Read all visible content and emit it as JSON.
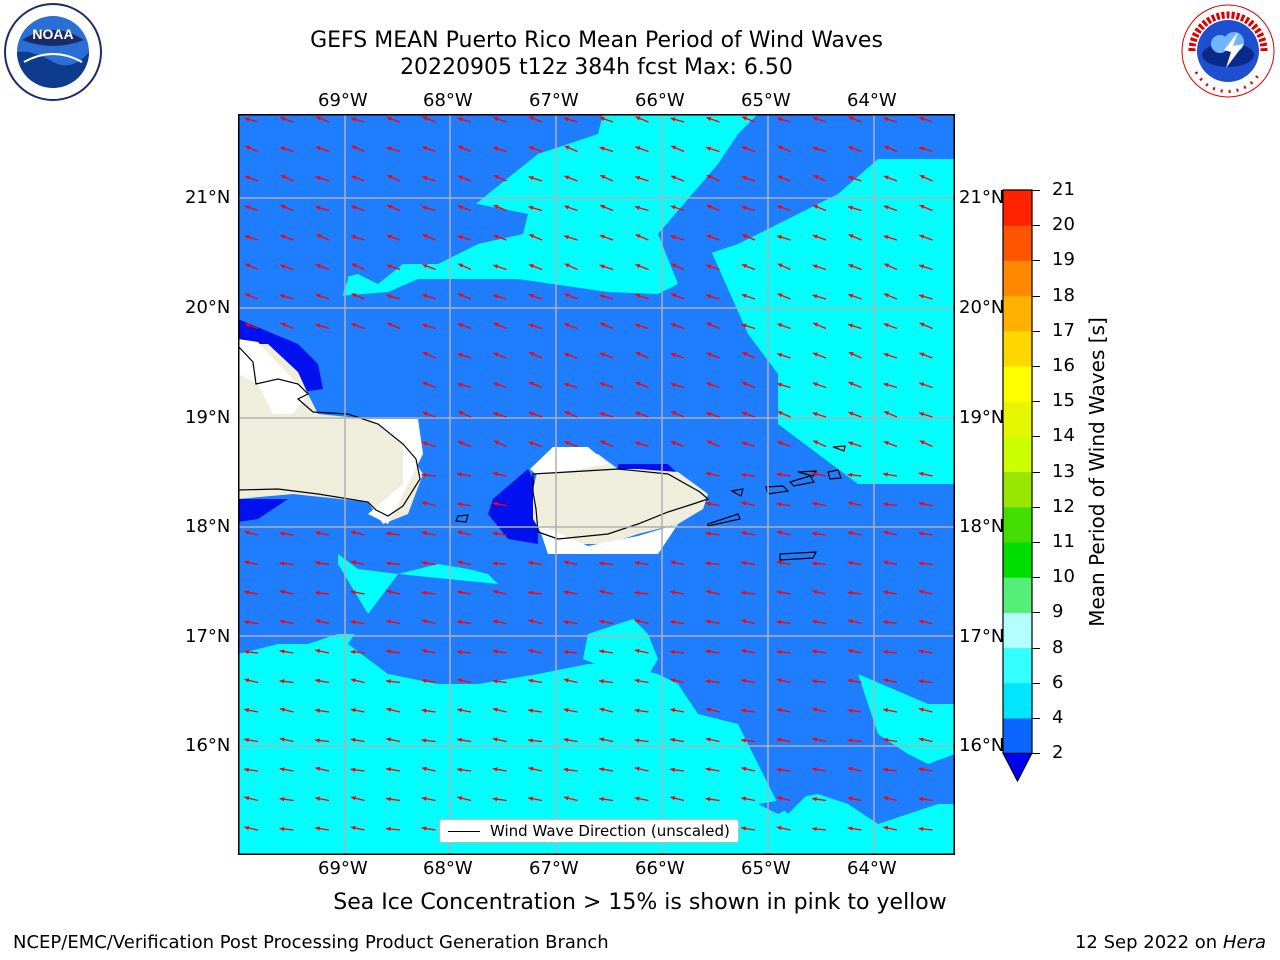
{
  "title": {
    "line1": "GEFS MEAN Puerto Rico Mean Period of Wind Waves",
    "line2": "20220905 t12z 384h fcst   Max: 6.50"
  },
  "map": {
    "lon_labels": [
      "69°W",
      "68°W",
      "67°W",
      "66°W",
      "65°W",
      "64°W"
    ],
    "lat_labels": [
      "21°N",
      "20°N",
      "19°N",
      "18°N",
      "17°N",
      "16°N"
    ],
    "extent": {
      "lon": [
        -70.0,
        -63.25
      ],
      "lat": [
        15.05,
        21.75
      ]
    },
    "gridlines": true
  },
  "legend": {
    "label": "Wind Wave Direction (unscaled)"
  },
  "colorbar": {
    "label": "Mean Period of Wind Waves [s]",
    "ticks": [
      "2",
      "4",
      "6",
      "8",
      "9",
      "10",
      "11",
      "12",
      "13",
      "14",
      "15",
      "16",
      "17",
      "18",
      "19",
      "20",
      "21"
    ],
    "colors": [
      "#0a66ff",
      "#00e6ff",
      "#33ffff",
      "#b3ffff",
      "#55ee77",
      "#00dd00",
      "#44dd00",
      "#99e600",
      "#ccff00",
      "#e6f500",
      "#ffff00",
      "#ffd700",
      "#ffb000",
      "#ff8800",
      "#ff5500",
      "#ff2200"
    ],
    "under_color": "#0000ee"
  },
  "colors": {
    "ocean_low": "#1f7dff",
    "ocean_high": "#00ffff",
    "ocean_very_low": "#0010ee",
    "land": "#efeddc",
    "arrow": "#ff0000"
  },
  "note": "Sea Ice Concentration > 15% is shown in pink to yellow",
  "footer": {
    "left": "NCEP/EMC/Verification Post Processing Product Generation Branch",
    "date": "12 Sep 2022 on",
    "machine": "Hera"
  },
  "logos": {
    "left": "NOAA",
    "right": "NATIONAL WEATHER SERVICE"
  }
}
